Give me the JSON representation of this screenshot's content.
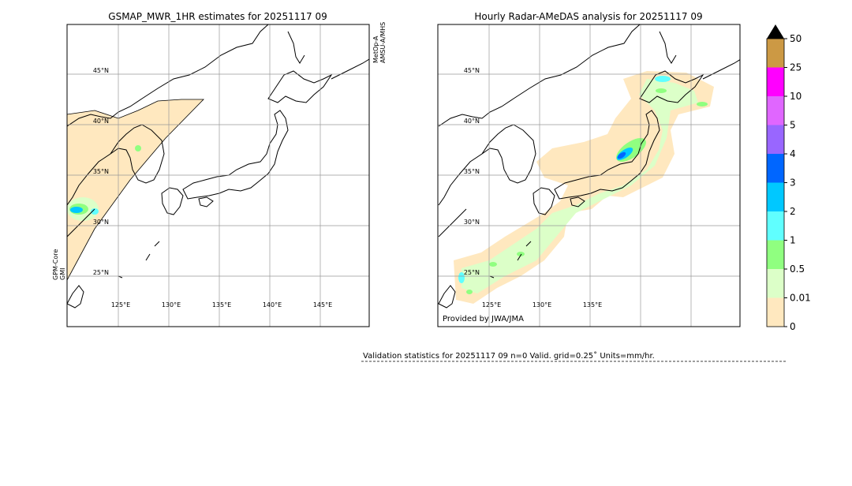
{
  "left_map": {
    "title": "GSMAP_MWR_1HR estimates for 20251117 09",
    "left_note": [
      "GPM-Core",
      "GMI"
    ],
    "right_note": [
      "MetOp-A",
      "AMSU-A/MHS"
    ],
    "lat_labels": [
      "45°N",
      "40°N",
      "35°N",
      "30°N",
      "25°N"
    ],
    "lon_labels": [
      "125°E",
      "130°E",
      "135°E",
      "140°E",
      "145°E"
    ]
  },
  "right_map": {
    "title": "Hourly Radar-AMeDAS analysis for 20251117 09",
    "credit": "Provided by JWA/JMA",
    "lat_labels": [
      "45°N",
      "40°N",
      "35°N",
      "30°N",
      "25°N"
    ],
    "lon_labels": [
      "125°E",
      "130°E",
      "135°E"
    ]
  },
  "colorbar": {
    "levels": [
      0,
      0.01,
      0.5,
      1,
      2,
      3,
      4,
      5,
      10,
      25,
      50
    ],
    "colors": [
      "#ffe8bf",
      "#dcffc8",
      "#90ff80",
      "#60ffff",
      "#00c8ff",
      "#0066ff",
      "#9966ff",
      "#e066ff",
      "#ff00ff",
      "#cc9944"
    ]
  },
  "footer": "Validation statistics for 20251117 09  n=0 Valid. grid=0.25˚ Units=mm/hr."
}
